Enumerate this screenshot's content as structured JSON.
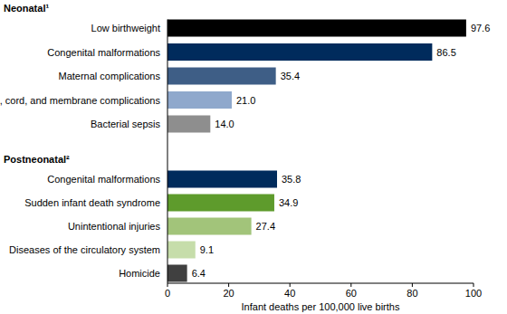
{
  "chart_data": [
    {
      "type": "bar",
      "orientation": "horizontal",
      "title": "Neonatal¹",
      "categories": [
        "Low birthweight",
        "Congenital malformations",
        "Maternal complications",
        "Placenta, cord, and membrane complications",
        "Bacterial sepsis"
      ],
      "values": [
        97.6,
        86.5,
        35.4,
        21.0,
        14.0
      ],
      "value_labels": [
        "97.6",
        "86.5",
        "35.4",
        "21.0",
        "14.0"
      ],
      "colors": [
        "#000000",
        "#002b5c",
        "#3e5e86",
        "#8fa8cc",
        "#8e8e8e"
      ],
      "xlim": [
        0,
        100
      ],
      "data_labels": true,
      "tick_labels": "y"
    },
    {
      "type": "bar",
      "orientation": "horizontal",
      "title": "Postneonatal²",
      "categories": [
        "Congenital malformations",
        "Sudden infant death syndrome",
        "Unintentional injuries",
        "Diseases of the circulatory system",
        "Homicide"
      ],
      "values": [
        35.8,
        34.9,
        27.4,
        9.1,
        6.4
      ],
      "colors": [
        "#002b5c",
        "#5e9b2c",
        "#a2c47a",
        "#c6ddaa",
        "#404040"
      ],
      "xlim": [
        0,
        100
      ],
      "xticks": [
        0,
        20,
        40,
        60,
        80,
        100
      ],
      "xlabel": "Infant deaths per 100,000 live births",
      "data_labels": true
    }
  ]
}
